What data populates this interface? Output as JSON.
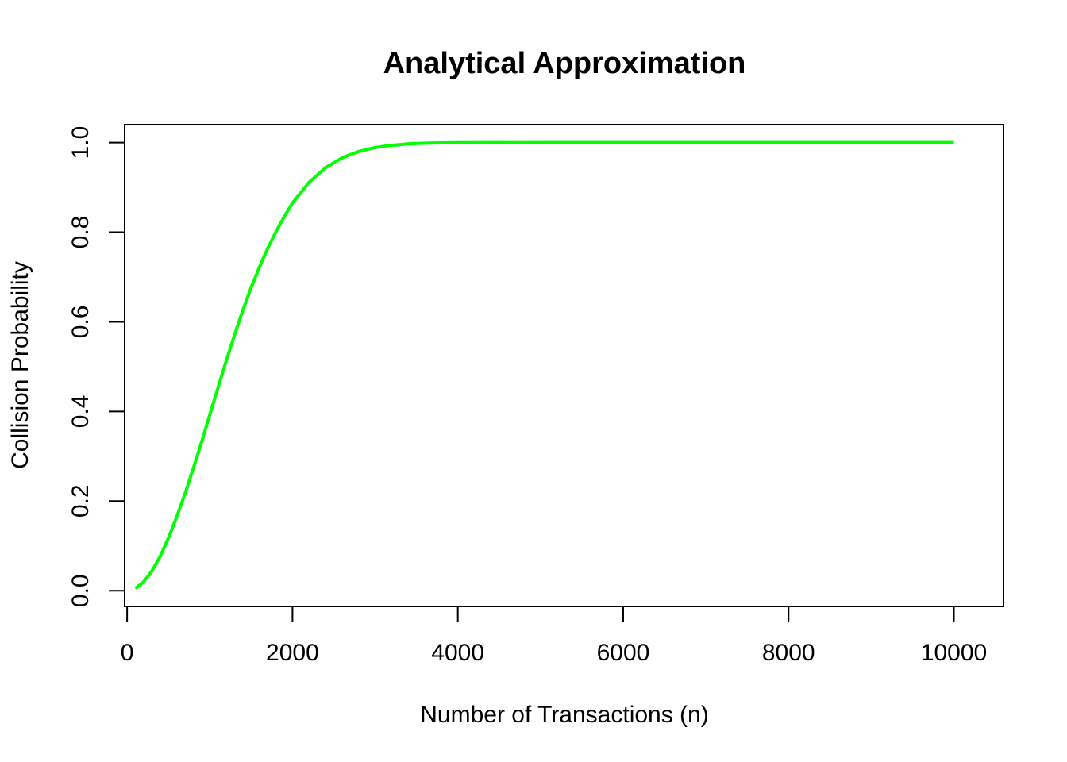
{
  "chart_data": {
    "type": "line",
    "title": "Analytical Approximation",
    "xlabel": "Number of Transactions (n)",
    "ylabel": "Collision Probability",
    "xlim": [
      -30,
      10600
    ],
    "ylim": [
      -0.035,
      1.04
    ],
    "x_ticks": [
      0,
      2000,
      4000,
      6000,
      8000,
      10000
    ],
    "x_tick_labels": [
      "0",
      "2000",
      "4000",
      "6000",
      "8000",
      "10000"
    ],
    "y_ticks": [
      0.0,
      0.2,
      0.4,
      0.6,
      0.8,
      1.0
    ],
    "y_tick_labels": [
      "0.0",
      "0.2",
      "0.4",
      "0.6",
      "0.8",
      "1.0"
    ],
    "grid": false,
    "legend": "none",
    "series": [
      {
        "color": "#00ff00",
        "x": [
          100,
          200,
          300,
          400,
          500,
          600,
          700,
          800,
          900,
          1000,
          1100,
          1200,
          1300,
          1400,
          1500,
          1600,
          1700,
          1800,
          1900,
          2000,
          2200,
          2400,
          2600,
          2800,
          3000,
          3200,
          3400,
          3600,
          3800,
          4000,
          5000,
          6000,
          7000,
          8000,
          9000,
          10000
        ],
        "y": [
          0.005,
          0.02,
          0.044,
          0.077,
          0.118,
          0.165,
          0.216,
          0.273,
          0.331,
          0.393,
          0.454,
          0.514,
          0.571,
          0.626,
          0.676,
          0.722,
          0.764,
          0.801,
          0.835,
          0.865,
          0.911,
          0.944,
          0.966,
          0.98,
          0.989,
          0.994,
          0.997,
          0.9985,
          0.9993,
          0.9997,
          1.0,
          1.0,
          1.0,
          1.0,
          1.0,
          1.0
        ]
      }
    ]
  }
}
